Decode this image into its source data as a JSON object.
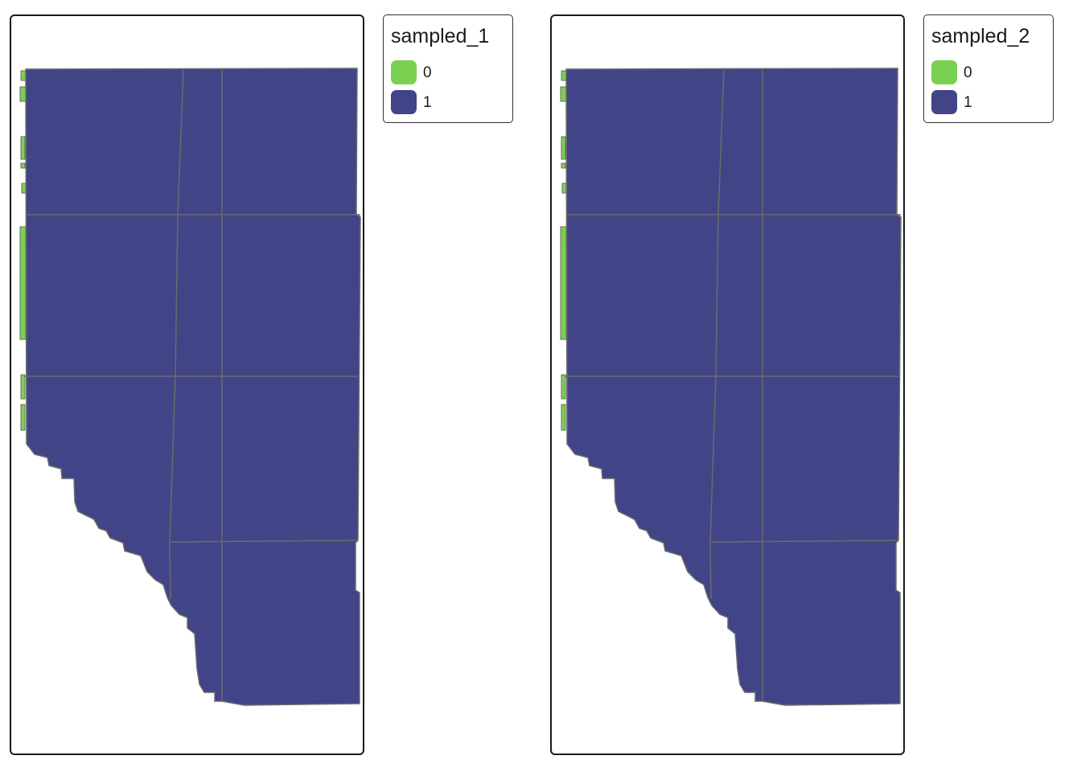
{
  "colors": {
    "sampled_0": "#7ad151",
    "sampled_1": "#414487",
    "border": "#6b6b6b"
  },
  "panels": [
    {
      "id": "left",
      "legend": {
        "title": "sampled_1",
        "items": [
          {
            "label": "0",
            "color": "#7ad151"
          },
          {
            "label": "1",
            "color": "#414487"
          }
        ]
      }
    },
    {
      "id": "right",
      "legend": {
        "title": "sampled_2",
        "items": [
          {
            "label": "0",
            "color": "#7ad151"
          },
          {
            "label": "1",
            "color": "#414487"
          }
        ]
      }
    }
  ]
}
